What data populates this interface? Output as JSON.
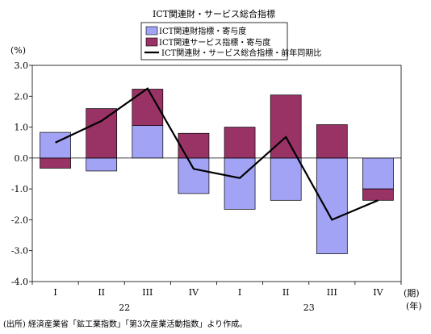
{
  "chart_data": {
    "type": "bar",
    "title": "ICT関連財・サービス総合指標",
    "ylabel": "(%)",
    "x_period_label": "(期)",
    "x_year_label": "(年)",
    "categories": [
      "I",
      "II",
      "III",
      "IV",
      "I",
      "II",
      "III",
      "IV"
    ],
    "year_groups": [
      {
        "label": "22",
        "from": 0,
        "to": 3
      },
      {
        "label": "23",
        "from": 4,
        "to": 7
      }
    ],
    "ylim": [
      -4.0,
      3.0
    ],
    "yticks": [
      "3.0",
      "2.0",
      "1.0",
      "0.0",
      "-1.0",
      "-2.0",
      "-3.0",
      "-4.0"
    ],
    "ytick_values": [
      3,
      2,
      1,
      0,
      -1,
      -2,
      -3,
      -4
    ],
    "stacked": true,
    "series": [
      {
        "name": "ICT関連財指標・寄与度",
        "kind": "bar",
        "color": "#a3a3f5",
        "values": [
          0.83,
          -0.42,
          1.05,
          -1.15,
          -1.66,
          -1.37,
          -3.1,
          -1.0
        ]
      },
      {
        "name": "ICT関連サービス指標・寄与度",
        "kind": "bar",
        "color": "#993366",
        "values": [
          -0.33,
          1.6,
          1.18,
          0.8,
          1.0,
          2.04,
          1.08,
          -0.37
        ]
      },
      {
        "name": "ICT関連財・サービス総合指標・前年同期比",
        "kind": "line",
        "color": "#000000",
        "values": [
          0.5,
          1.2,
          2.25,
          -0.35,
          -0.65,
          0.68,
          -2.0,
          -1.37
        ]
      }
    ],
    "grid": false,
    "legend_position": "top-center"
  },
  "source_note": "(出所) 経済産業省「鉱工業指数」「第3次産業活動指数」より作成。"
}
